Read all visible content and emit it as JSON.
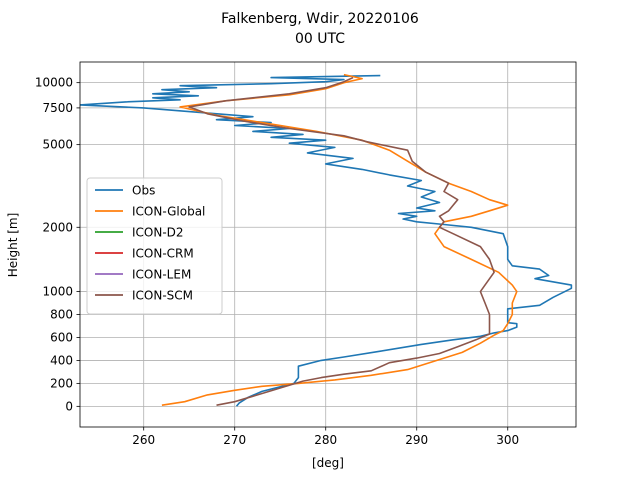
{
  "chart_data": {
    "type": "line",
    "title": "Falkenberg, Wdir, 20220106",
    "subtitle": "00 UTC",
    "xlabel": "[deg]",
    "ylabel": "Height [m]",
    "xlim": [
      253,
      307.5
    ],
    "xticks": [
      260,
      270,
      280,
      290,
      300
    ],
    "yticks": [
      {
        "label": "0",
        "value": 0
      },
      {
        "label": "200",
        "value": 200
      },
      {
        "label": "400",
        "value": 400
      },
      {
        "label": "600",
        "value": 600
      },
      {
        "label": "800",
        "value": 800
      },
      {
        "label": "1000",
        "value": 1000
      },
      {
        "label": "2000",
        "value": 2000
      },
      {
        "label": "5000",
        "value": 5000
      },
      {
        "label": "7500",
        "value": 7500
      },
      {
        "label": "10000",
        "value": 10000
      }
    ],
    "y_scale": "piecewise: linear 0-600 m, compressed above",
    "y_anchors": [
      [
        0,
        0
      ],
      [
        200,
        1
      ],
      [
        400,
        2
      ],
      [
        600,
        3
      ],
      [
        800,
        4
      ],
      [
        1000,
        5
      ],
      [
        2000,
        7.8
      ],
      [
        5000,
        11.4
      ],
      [
        7500,
        13.0
      ],
      [
        10000,
        14.1
      ]
    ],
    "ylim_index": [
      -0.9,
      15.0
    ],
    "grid": true,
    "legend": {
      "position": "center-left",
      "entries": [
        "Obs",
        "ICON-Global",
        "ICON-D2",
        "ICON-CRM",
        "ICON-LEM",
        "ICON-SCM"
      ]
    },
    "series": [
      {
        "name": "Obs",
        "color": "#1f77b4",
        "points": [
          [
            270.2,
            0
          ],
          [
            270.5,
            30
          ],
          [
            271.5,
            80
          ],
          [
            273.0,
            130
          ],
          [
            275.0,
            170
          ],
          [
            276.5,
            200
          ],
          [
            277.0,
            250
          ],
          [
            277.0,
            300
          ],
          [
            277.0,
            350
          ],
          [
            279.5,
            400
          ],
          [
            282.0,
            430
          ],
          [
            286.0,
            480
          ],
          [
            290.5,
            540
          ],
          [
            294.0,
            580
          ],
          [
            297.0,
            610
          ],
          [
            298.5,
            640
          ],
          [
            300.0,
            660
          ],
          [
            301.0,
            690
          ],
          [
            301.0,
            720
          ],
          [
            300.0,
            730
          ],
          [
            300.0,
            800
          ],
          [
            300.0,
            850
          ],
          [
            303.5,
            880
          ],
          [
            305.0,
            950
          ],
          [
            307.0,
            1050
          ],
          [
            307.0,
            1100
          ],
          [
            303.0,
            1200
          ],
          [
            304.5,
            1250
          ],
          [
            303.5,
            1350
          ],
          [
            300.5,
            1400
          ],
          [
            300.0,
            1500
          ],
          [
            300.0,
            1700
          ],
          [
            299.5,
            1900
          ],
          [
            296.0,
            2000
          ],
          [
            293.0,
            2100
          ],
          [
            290.0,
            2200
          ],
          [
            288.5,
            2300
          ],
          [
            290.0,
            2400
          ],
          [
            288.0,
            2500
          ],
          [
            292.0,
            2600
          ],
          [
            290.0,
            2700
          ],
          [
            292.5,
            2900
          ],
          [
            290.5,
            3100
          ],
          [
            292.0,
            3300
          ],
          [
            289.0,
            3500
          ],
          [
            290.5,
            3700
          ],
          [
            287.0,
            3900
          ],
          [
            284.0,
            4100
          ],
          [
            280.0,
            4300
          ],
          [
            283.0,
            4500
          ],
          [
            278.0,
            4700
          ],
          [
            281.0,
            4900
          ],
          [
            276.0,
            5100
          ],
          [
            280.0,
            5300
          ],
          [
            274.0,
            5500
          ],
          [
            277.5,
            5700
          ],
          [
            272.0,
            5900
          ],
          [
            276.0,
            6100
          ],
          [
            270.0,
            6300
          ],
          [
            274.0,
            6500
          ],
          [
            268.0,
            6700
          ],
          [
            272.0,
            6900
          ],
          [
            266.0,
            7200
          ],
          [
            260.0,
            7500
          ],
          [
            253.0,
            7800
          ],
          [
            258.0,
            8100
          ],
          [
            264.0,
            8300
          ],
          [
            261.0,
            8500
          ],
          [
            266.0,
            8700
          ],
          [
            261.0,
            8900
          ],
          [
            265.0,
            9100
          ],
          [
            262.0,
            9300
          ],
          [
            268.0,
            9500
          ],
          [
            264.0,
            9700
          ],
          [
            274.0,
            9900
          ],
          [
            280.0,
            10100
          ],
          [
            282.0,
            10300
          ],
          [
            274.0,
            10500
          ],
          [
            286.0,
            10700
          ]
        ]
      },
      {
        "name": "ICON-Global",
        "color": "#ff7f0e",
        "points": [
          [
            262.0,
            10
          ],
          [
            264.5,
            40
          ],
          [
            267.0,
            100
          ],
          [
            270.0,
            140
          ],
          [
            273.0,
            175
          ],
          [
            277.0,
            200
          ],
          [
            281.0,
            230
          ],
          [
            285.0,
            270
          ],
          [
            289.0,
            320
          ],
          [
            291.0,
            370
          ],
          [
            293.0,
            420
          ],
          [
            295.0,
            470
          ],
          [
            297.0,
            550
          ],
          [
            298.5,
            620
          ],
          [
            299.5,
            660
          ],
          [
            300.0,
            720
          ],
          [
            300.5,
            800
          ],
          [
            300.5,
            900
          ],
          [
            301.0,
            1000
          ],
          [
            300.5,
            1100
          ],
          [
            299.0,
            1300
          ],
          [
            296.0,
            1500
          ],
          [
            293.0,
            1700
          ],
          [
            292.0,
            1900
          ],
          [
            292.5,
            2000
          ],
          [
            293.0,
            2200
          ],
          [
            296.0,
            2400
          ],
          [
            298.0,
            2600
          ],
          [
            300.0,
            2800
          ],
          [
            298.0,
            3000
          ],
          [
            296.0,
            3300
          ],
          [
            293.5,
            3600
          ],
          [
            291.0,
            4000
          ],
          [
            289.0,
            4400
          ],
          [
            287.0,
            4800
          ],
          [
            284.0,
            5300
          ],
          [
            279.0,
            5900
          ],
          [
            273.0,
            6500
          ],
          [
            268.0,
            7000
          ],
          [
            264.0,
            7600
          ],
          [
            269.0,
            8200
          ],
          [
            276.0,
            8800
          ],
          [
            280.0,
            9400
          ],
          [
            282.0,
            10000
          ],
          [
            284.0,
            10400
          ],
          [
            282.0,
            10800
          ]
        ]
      },
      {
        "name": "ICON-D2",
        "color": "#2ca02c",
        "points": []
      },
      {
        "name": "ICON-CRM",
        "color": "#d62728",
        "points": []
      },
      {
        "name": "ICON-LEM",
        "color": "#9467bd",
        "points": []
      },
      {
        "name": "ICON-SCM",
        "color": "#8c564b",
        "points": [
          [
            268.0,
            10
          ],
          [
            270.0,
            40
          ],
          [
            272.5,
            100
          ],
          [
            275.0,
            160
          ],
          [
            277.5,
            220
          ],
          [
            279.5,
            250
          ],
          [
            282.0,
            280
          ],
          [
            285.0,
            310
          ],
          [
            287.0,
            380
          ],
          [
            290.0,
            420
          ],
          [
            292.5,
            460
          ],
          [
            294.5,
            520
          ],
          [
            296.5,
            580
          ],
          [
            298.0,
            630
          ],
          [
            298.0,
            700
          ],
          [
            298.0,
            800
          ],
          [
            297.5,
            900
          ],
          [
            297.0,
            1000
          ],
          [
            297.5,
            1100
          ],
          [
            298.5,
            1300
          ],
          [
            298.0,
            1500
          ],
          [
            297.0,
            1700
          ],
          [
            294.0,
            1900
          ],
          [
            292.5,
            2000
          ],
          [
            293.0,
            2200
          ],
          [
            292.5,
            2400
          ],
          [
            293.5,
            2600
          ],
          [
            294.0,
            2800
          ],
          [
            294.5,
            3000
          ],
          [
            293.0,
            3300
          ],
          [
            293.5,
            3600
          ],
          [
            291.0,
            4000
          ],
          [
            289.5,
            4400
          ],
          [
            289.0,
            4800
          ],
          [
            284.5,
            5200
          ],
          [
            282.0,
            5600
          ],
          [
            276.0,
            6100
          ],
          [
            271.0,
            6600
          ],
          [
            267.0,
            7100
          ],
          [
            265.0,
            7600
          ],
          [
            269.0,
            8200
          ],
          [
            276.0,
            8900
          ],
          [
            280.0,
            9500
          ],
          [
            282.0,
            10100
          ],
          [
            283.0,
            10500
          ]
        ]
      }
    ]
  }
}
